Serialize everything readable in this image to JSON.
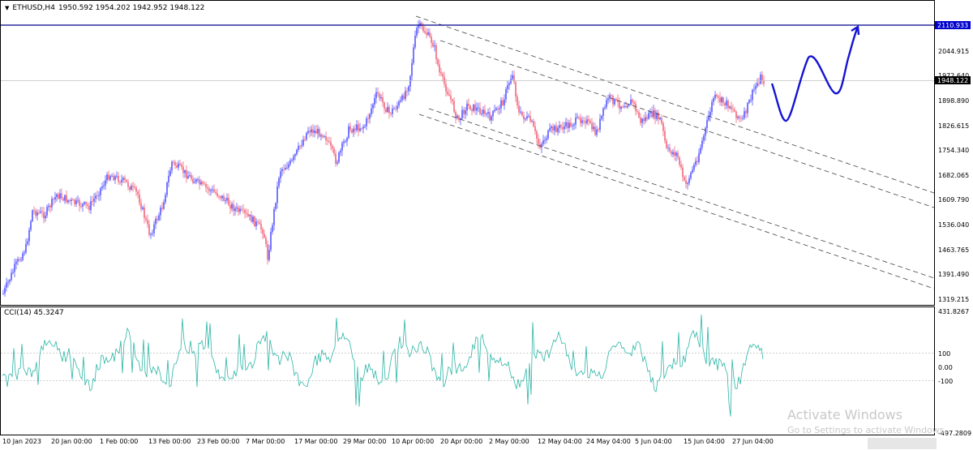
{
  "header": {
    "symbol": "ETHUSD,H4",
    "ohlc": "1950.592 1954.202 1942.952 1948.122"
  },
  "indicator": {
    "label": "CCI(14) 45.3247",
    "scale": [
      "431.8267",
      "100",
      "0.00",
      "-100",
      "-497.2809"
    ]
  },
  "price_axis": [
    "2044.915",
    "1972.640",
    "1898.890",
    "1826.615",
    "1754.340",
    "1682.065",
    "1609.790",
    "1536.040",
    "1463.765",
    "1391.490",
    "1319.215"
  ],
  "price_tags": {
    "resistance": "2110.933",
    "current": "1948.122"
  },
  "time_axis": [
    "10 Jan 2023",
    "20 Jan 00:00",
    "1 Feb 00:00",
    "13 Feb 00:00",
    "23 Feb 00:00",
    "7 Mar 00:00",
    "17 Mar 00:00",
    "29 Mar 00:00",
    "10 Apr 00:00",
    "20 Apr 00:00",
    "2 May 00:00",
    "12 May 04:00",
    "24 May 04:00",
    "5 Jun 04:00",
    "15 Jun 04:00",
    "27 Jun 04:00"
  ],
  "watermark": {
    "title": "Activate Windows",
    "subtitle": "Go to Settings to activate Windows."
  },
  "colors": {
    "bull": "#3d3dff",
    "bear": "#f0506a",
    "resistance_line": "#00008b",
    "projection": "#1414d2",
    "cci": "#2ab5a5"
  }
}
